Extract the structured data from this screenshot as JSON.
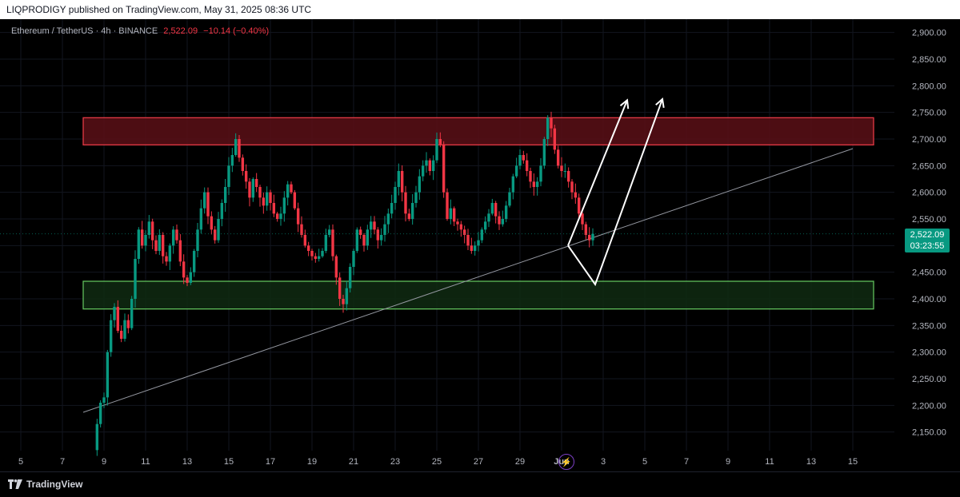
{
  "publish_info": "LIQPRODIGY published on TradingView.com, May 31, 2025 08:36 UTC",
  "symbol": {
    "name": "Ethereum / TetherUS · 4h · BINANCE",
    "last": "2,522.09",
    "change": "−10.14 (−0.40%)"
  },
  "price_label": {
    "price": "2,522.09",
    "countdown": "03:23:55"
  },
  "footer": {
    "brand": "TradingView"
  },
  "icons": {
    "bolt": "lightning-icon",
    "logo": "tradingview-logo-icon"
  },
  "colors": {
    "up": "#089981",
    "down": "#f23645",
    "resistance_fill": "#5a0f16",
    "resistance_border": "#e53945",
    "support_fill": "#0f2a12",
    "support_border": "#5fbf5b"
  },
  "chart_data": {
    "type": "candlestick",
    "yaxis": {
      "ticks": [
        "2,150.00",
        "2,200.00",
        "2,250.00",
        "2,300.00",
        "2,350.00",
        "2,400.00",
        "2,450.00",
        "2,500.00",
        "2,550.00",
        "2,600.00",
        "2,650.00",
        "2,700.00",
        "2,750.00",
        "2,800.00",
        "2,850.00",
        "2,900.00"
      ],
      "range": [
        2115,
        2925
      ]
    },
    "xaxis": {
      "ticks": [
        "5",
        "7",
        "9",
        "11",
        "13",
        "15",
        "17",
        "19",
        "21",
        "23",
        "25",
        "27",
        "29",
        "Jun",
        "3",
        "5",
        "7",
        "9",
        "11",
        "13",
        "15"
      ],
      "range": [
        "2025-05-04",
        "2025-06-16"
      ]
    },
    "zones": [
      {
        "name": "resistance",
        "low": 2689,
        "high": 2740,
        "from": "2025-05-08",
        "to": "2025-06-15"
      },
      {
        "name": "support",
        "low": 2381,
        "high": 2433,
        "from": "2025-05-08",
        "to": "2025-06-15"
      }
    ],
    "trendline": {
      "from": [
        "2025-05-08",
        2187
      ],
      "to": [
        "2025-06-14",
        2682
      ]
    },
    "projection": [
      [
        "2025-05-31",
        2500
      ],
      [
        "2025-06-01",
        2427
      ],
      [
        "2025-06-02",
        2773
      ],
      [
        "2025-06-02",
        2503
      ],
      [
        "2025-06-05",
        2775
      ]
    ],
    "closes": [
      2116,
      2165,
      2205,
      2215,
      2300,
      2360,
      2385,
      2340,
      2325,
      2360,
      2345,
      2400,
      2475,
      2530,
      2500,
      2520,
      2545,
      2510,
      2490,
      2520,
      2480,
      2470,
      2500,
      2530,
      2510,
      2470,
      2440,
      2430,
      2450,
      2490,
      2530,
      2570,
      2600,
      2555,
      2530,
      2510,
      2550,
      2580,
      2610,
      2650,
      2670,
      2700,
      2665,
      2640,
      2620,
      2590,
      2625,
      2610,
      2590,
      2575,
      2600,
      2580,
      2560,
      2550,
      2560,
      2590,
      2615,
      2600,
      2570,
      2540,
      2520,
      2500,
      2490,
      2480,
      2475,
      2480,
      2490,
      2520,
      2530,
      2480,
      2440,
      2400,
      2390,
      2420,
      2460,
      2490,
      2530,
      2520,
      2500,
      2530,
      2545,
      2530,
      2510,
      2520,
      2540,
      2560,
      2580,
      2610,
      2640,
      2600,
      2560,
      2550,
      2580,
      2600,
      2630,
      2650,
      2660,
      2640,
      2660,
      2700,
      2690,
      2600,
      2550,
      2570,
      2545,
      2540,
      2530,
      2520,
      2500,
      2490,
      2500,
      2510,
      2530,
      2545,
      2560,
      2580,
      2555,
      2540,
      2550,
      2575,
      2600,
      2630,
      2650,
      2670,
      2660,
      2640,
      2620,
      2610,
      2620,
      2650,
      2700,
      2740,
      2720,
      2680,
      2650,
      2640,
      2640,
      2620,
      2600,
      2590,
      2560,
      2540,
      2520,
      2510,
      2522
    ]
  }
}
